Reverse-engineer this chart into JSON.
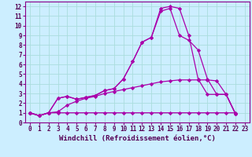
{
  "title": "",
  "xlabel": "Windchill (Refroidissement éolien,°C)",
  "ylabel": "",
  "background_color": "#cceeff",
  "line_color": "#aa00aa",
  "grid_color": "#aadddd",
  "xlim": [
    -0.5,
    23.5
  ],
  "ylim": [
    0,
    12.5
  ],
  "xticks": [
    0,
    1,
    2,
    3,
    4,
    5,
    6,
    7,
    8,
    9,
    10,
    11,
    12,
    13,
    14,
    15,
    16,
    17,
    18,
    19,
    20,
    21,
    22,
    23
  ],
  "yticks": [
    0,
    1,
    2,
    3,
    4,
    5,
    6,
    7,
    8,
    9,
    10,
    11,
    12
  ],
  "series": [
    {
      "x": [
        0,
        1,
        2,
        3,
        4,
        5,
        6,
        7,
        8,
        9,
        10,
        11,
        12,
        13,
        14,
        15,
        16,
        17,
        18,
        19,
        20,
        21,
        22
      ],
      "y": [
        1.0,
        0.7,
        1.0,
        1.0,
        1.0,
        1.0,
        1.0,
        1.0,
        1.0,
        1.0,
        1.0,
        1.0,
        1.0,
        1.0,
        1.0,
        1.0,
        1.0,
        1.0,
        1.0,
        1.0,
        1.0,
        1.0,
        1.0
      ]
    },
    {
      "x": [
        0,
        1,
        2,
        3,
        4,
        5,
        6,
        7,
        8,
        9,
        10,
        11,
        12,
        13,
        14,
        15,
        16,
        17,
        18,
        19,
        20,
        21,
        22
      ],
      "y": [
        1.0,
        0.7,
        1.0,
        1.1,
        1.8,
        2.2,
        2.5,
        2.7,
        3.0,
        3.2,
        3.4,
        3.6,
        3.8,
        4.0,
        4.2,
        4.3,
        4.4,
        4.4,
        4.4,
        4.4,
        4.3,
        2.9,
        0.9
      ]
    },
    {
      "x": [
        0,
        1,
        2,
        3,
        4,
        5,
        6,
        7,
        8,
        9,
        10,
        11,
        12,
        13,
        14,
        15,
        16,
        17,
        18,
        19,
        20,
        21,
        22
      ],
      "y": [
        1.0,
        0.7,
        1.0,
        2.5,
        2.7,
        2.4,
        2.6,
        2.8,
        3.3,
        3.5,
        4.5,
        6.3,
        8.3,
        8.8,
        11.5,
        11.8,
        9.0,
        8.5,
        7.5,
        4.5,
        2.9,
        2.9,
        0.9
      ]
    },
    {
      "x": [
        0,
        1,
        2,
        3,
        4,
        5,
        6,
        7,
        8,
        9,
        10,
        11,
        12,
        13,
        14,
        15,
        16,
        17,
        18,
        19,
        20,
        21,
        22
      ],
      "y": [
        1.0,
        0.7,
        1.0,
        2.5,
        2.7,
        2.4,
        2.6,
        2.8,
        3.3,
        3.5,
        4.5,
        6.3,
        8.3,
        8.8,
        11.8,
        12.0,
        11.8,
        9.0,
        4.5,
        2.9,
        2.9,
        2.9,
        0.9
      ]
    }
  ],
  "marker": "D",
  "marker_size": 2.2,
  "line_width": 0.9,
  "font_size_tick": 5.5,
  "font_size_xlabel": 6.5
}
